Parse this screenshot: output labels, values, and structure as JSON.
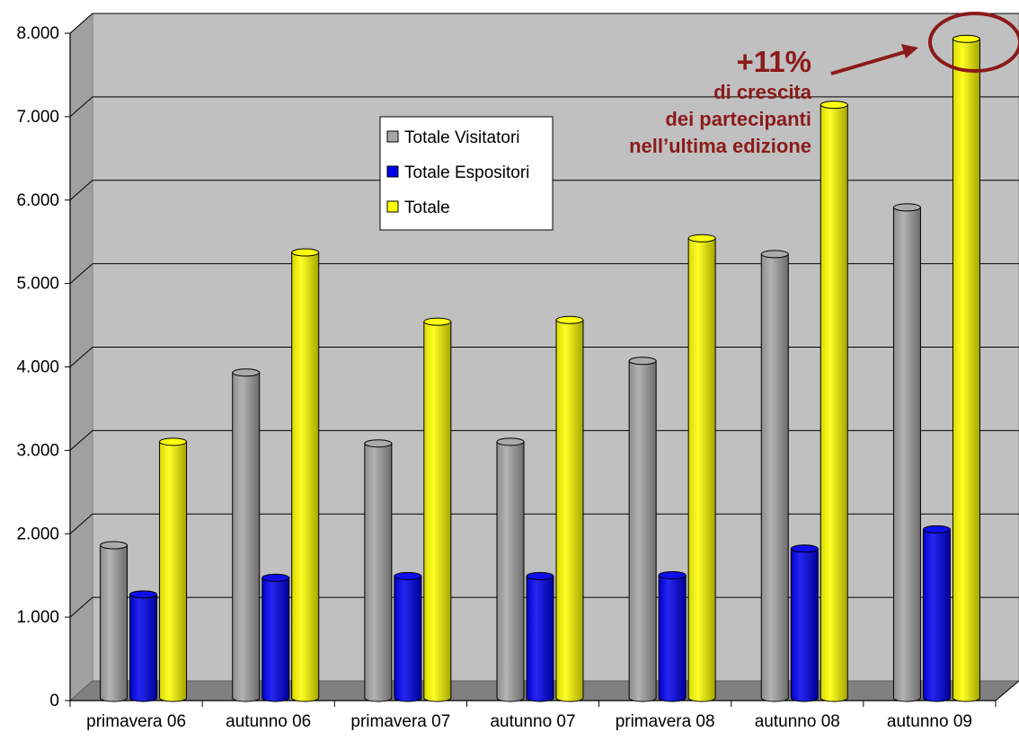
{
  "chart_data": {
    "type": "bar",
    "style": "3d-cylinder",
    "categories": [
      "primavera 06",
      "autunno 06",
      "primavera 07",
      "autunno 07",
      "primavera 08",
      "autunno 08",
      "autunno 09"
    ],
    "series": [
      {
        "name": "Totale Visitatori",
        "color": "#a6a6a6",
        "values": [
          1830,
          3900,
          3050,
          3070,
          4040,
          5320,
          5880
        ]
      },
      {
        "name": "Totale Espositori",
        "color": "#0000ee",
        "values": [
          1240,
          1440,
          1460,
          1460,
          1470,
          1790,
          2020
        ]
      },
      {
        "name": "Totale",
        "color": "#ffff00",
        "values": [
          3070,
          5340,
          4510,
          4530,
          5510,
          7110,
          7900
        ]
      }
    ],
    "ylim": [
      0,
      8000
    ],
    "yticks": [
      "0",
      "1.000",
      "2.000",
      "3.000",
      "4.000",
      "5.000",
      "6.000",
      "7.000",
      "8.000"
    ],
    "grid": true,
    "legend_position": "upper-center",
    "annotation": {
      "headline": "+11%",
      "lines": [
        "di crescita",
        "dei partecipanti",
        "nell’ultima edizione"
      ],
      "color": "#8b1a1a",
      "target_category": "autunno 09",
      "target_series": "Totale"
    }
  }
}
